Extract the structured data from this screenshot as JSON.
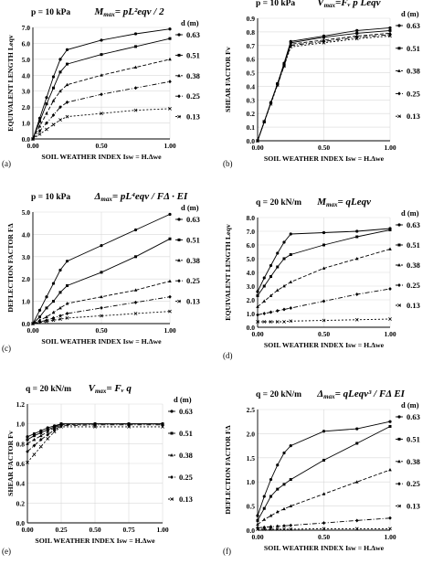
{
  "figure": {
    "panels": [
      {
        "letter": "(a)",
        "header_load": "p = 10 kPa",
        "eq_lhs": "M",
        "eq_sub": "max",
        "eq_rhs": "= pL²eqv / 2"
      },
      {
        "letter": "(b)",
        "header_load": "p = 10 kPa",
        "eq_lhs": "V",
        "eq_sub": "max",
        "eq_rhs": "=Fᵥ p Leqv"
      },
      {
        "letter": "(c)",
        "header_load": "p = 10 kPa",
        "eq_lhs": "Δ",
        "eq_sub": "max",
        "eq_rhs": "= pL⁴eqv / FΔ · EI"
      },
      {
        "letter": "(d)",
        "header_load": "q = 20 kN/m",
        "eq_lhs": "M",
        "eq_sub": "max",
        "eq_rhs": "= qLeqv"
      },
      {
        "letter": "(e)",
        "header_load": "q = 20 kN/m",
        "eq_lhs": "V",
        "eq_sub": "max",
        "eq_rhs": "= Fᵥ q"
      },
      {
        "letter": "(f)",
        "header_load": "q = 20 kN/m",
        "eq_lhs": "Δ",
        "eq_sub": "max",
        "eq_rhs": "= qLeqv³ / FΔ EI"
      }
    ]
  },
  "chart_data": [
    {
      "type": "line",
      "panel": "(a)",
      "ylabel": "EQUIVALENT LENGTH Leqv",
      "xlabel": "SOIL WEATHER INDEX Isw = H.Δwe",
      "xlim": [
        0,
        1
      ],
      "ylim": [
        0,
        7
      ],
      "x_ticks": [
        "0.00",
        "0.50",
        "1.00"
      ],
      "y_ticks": [
        "0.0",
        "1.0",
        "2.0",
        "3.0",
        "4.0",
        "5.0",
        "6.0",
        "7.0"
      ],
      "legend_title": "d (m)",
      "series": [
        {
          "name": "0.63",
          "x": [
            0,
            0.05,
            0.1,
            0.15,
            0.2,
            0.25,
            0.5,
            0.75,
            1.0
          ],
          "y": [
            0,
            1.3,
            2.6,
            3.9,
            5.0,
            5.6,
            6.2,
            6.6,
            6.9
          ]
        },
        {
          "name": "0.51",
          "x": [
            0,
            0.05,
            0.1,
            0.15,
            0.2,
            0.25,
            0.5,
            0.75,
            1.0
          ],
          "y": [
            0,
            1.1,
            2.2,
            3.2,
            4.2,
            4.7,
            5.3,
            5.8,
            6.3
          ]
        },
        {
          "name": "0.38",
          "x": [
            0,
            0.05,
            0.1,
            0.15,
            0.2,
            0.25,
            0.5,
            0.75,
            1.0
          ],
          "y": [
            0,
            0.8,
            1.6,
            2.4,
            3.0,
            3.4,
            4.0,
            4.5,
            5.0
          ]
        },
        {
          "name": "0.25",
          "x": [
            0,
            0.05,
            0.1,
            0.15,
            0.2,
            0.25,
            0.5,
            0.75,
            1.0
          ],
          "y": [
            0,
            0.5,
            1.0,
            1.5,
            2.0,
            2.3,
            2.8,
            3.2,
            3.6
          ]
        },
        {
          "name": "0.13",
          "x": [
            0,
            0.05,
            0.1,
            0.15,
            0.2,
            0.25,
            0.5,
            0.75,
            1.0
          ],
          "y": [
            0,
            0.3,
            0.6,
            0.9,
            1.2,
            1.4,
            1.6,
            1.8,
            1.9
          ]
        }
      ]
    },
    {
      "type": "line",
      "panel": "(b)",
      "ylabel": "SHEAR FACTOR Fv",
      "xlabel": "SOIL WEATHER INDEX Isw = H.Δwe",
      "xlim": [
        0,
        1
      ],
      "ylim": [
        0,
        0.9
      ],
      "x_ticks": [
        "0.00",
        "0.50",
        "1.00"
      ],
      "y_ticks": [
        "0.0",
        "0.1",
        "0.2",
        "0.3",
        "0.4",
        "0.5",
        "0.6",
        "0.7",
        "0.8",
        "0.9"
      ],
      "legend_title": "d (m)",
      "series": [
        {
          "name": "0.63",
          "x": [
            0,
            0.05,
            0.1,
            0.15,
            0.2,
            0.25,
            0.5,
            0.75,
            1.0
          ],
          "y": [
            0,
            0.14,
            0.28,
            0.42,
            0.57,
            0.73,
            0.77,
            0.81,
            0.83
          ]
        },
        {
          "name": "0.51",
          "x": [
            0,
            0.05,
            0.1,
            0.15,
            0.2,
            0.25,
            0.5,
            0.75,
            1.0
          ],
          "y": [
            0,
            0.14,
            0.28,
            0.42,
            0.56,
            0.72,
            0.76,
            0.79,
            0.81
          ]
        },
        {
          "name": "0.38",
          "x": [
            0,
            0.05,
            0.1,
            0.15,
            0.2,
            0.25,
            0.5,
            0.75,
            1.0
          ],
          "y": [
            0,
            0.14,
            0.28,
            0.42,
            0.56,
            0.71,
            0.74,
            0.77,
            0.79
          ]
        },
        {
          "name": "0.25",
          "x": [
            0,
            0.05,
            0.1,
            0.15,
            0.2,
            0.25,
            0.5,
            0.75,
            1.0
          ],
          "y": [
            0,
            0.14,
            0.28,
            0.41,
            0.55,
            0.7,
            0.73,
            0.76,
            0.78
          ]
        },
        {
          "name": "0.13",
          "x": [
            0,
            0.05,
            0.1,
            0.15,
            0.2,
            0.25,
            0.5,
            0.75,
            1.0
          ],
          "y": [
            0,
            0.14,
            0.27,
            0.41,
            0.55,
            0.69,
            0.72,
            0.75,
            0.77
          ]
        }
      ]
    },
    {
      "type": "line",
      "panel": "(c)",
      "ylabel": "DEFLECTION FACTOR FΔ",
      "xlabel": "SOIL WEATHER INDEX Isw = H.Δwe",
      "xlim": [
        0,
        1
      ],
      "ylim": [
        0,
        5
      ],
      "x_ticks": [
        "0.00",
        "0.50",
        "1.00"
      ],
      "y_ticks": [
        "0.0",
        "1.0",
        "2.0",
        "3.0",
        "4.0",
        "5.0"
      ],
      "legend_title": "d (m)",
      "series": [
        {
          "name": "0.63",
          "x": [
            0,
            0.05,
            0.1,
            0.15,
            0.2,
            0.25,
            0.5,
            0.75,
            1.0
          ],
          "y": [
            0,
            0.6,
            1.2,
            1.8,
            2.4,
            2.8,
            3.5,
            4.2,
            4.9
          ]
        },
        {
          "name": "0.51",
          "x": [
            0,
            0.05,
            0.1,
            0.15,
            0.2,
            0.25,
            0.5,
            0.75,
            1.0
          ],
          "y": [
            0,
            0.3,
            0.7,
            1.0,
            1.4,
            1.7,
            2.3,
            3.0,
            3.8
          ]
        },
        {
          "name": "0.38",
          "x": [
            0,
            0.05,
            0.1,
            0.15,
            0.2,
            0.25,
            0.5,
            0.75,
            1.0
          ],
          "y": [
            0,
            0.15,
            0.3,
            0.5,
            0.7,
            0.9,
            1.2,
            1.5,
            1.9
          ]
        },
        {
          "name": "0.25",
          "x": [
            0,
            0.05,
            0.1,
            0.15,
            0.2,
            0.25,
            0.5,
            0.75,
            1.0
          ],
          "y": [
            0,
            0.08,
            0.15,
            0.25,
            0.35,
            0.45,
            0.7,
            0.95,
            1.2
          ]
        },
        {
          "name": "0.13",
          "x": [
            0,
            0.05,
            0.1,
            0.15,
            0.2,
            0.25,
            0.5,
            0.75,
            1.0
          ],
          "y": [
            0,
            0.05,
            0.1,
            0.15,
            0.2,
            0.25,
            0.35,
            0.45,
            0.55
          ]
        }
      ]
    },
    {
      "type": "line",
      "panel": "(d)",
      "ylabel": "EQUIVALENT LENGTH Leqv",
      "xlabel": "SOIL WEATHER INDEX Isw = H.Δwe",
      "xlim": [
        0,
        1
      ],
      "ylim": [
        0,
        8
      ],
      "x_ticks": [
        "0.00",
        "0.50",
        "1.00"
      ],
      "y_ticks": [
        "0.0",
        "1.0",
        "2.0",
        "3.0",
        "4.0",
        "5.0",
        "6.0",
        "7.0",
        "8.0"
      ],
      "legend_title": "d (m)",
      "series": [
        {
          "name": "0.63",
          "x": [
            0,
            0.05,
            0.1,
            0.15,
            0.2,
            0.25,
            0.5,
            0.75,
            1.0
          ],
          "y": [
            2.6,
            3.6,
            4.5,
            5.4,
            6.2,
            6.8,
            6.9,
            7.0,
            7.2
          ]
        },
        {
          "name": "0.51",
          "x": [
            0,
            0.05,
            0.1,
            0.15,
            0.2,
            0.25,
            0.5,
            0.75,
            1.0
          ],
          "y": [
            2.3,
            3.0,
            3.7,
            4.4,
            5.0,
            5.3,
            6.0,
            6.6,
            7.1
          ]
        },
        {
          "name": "0.38",
          "x": [
            0,
            0.05,
            0.1,
            0.15,
            0.2,
            0.25,
            0.5,
            0.75,
            1.0
          ],
          "y": [
            1.5,
            1.9,
            2.3,
            2.7,
            3.0,
            3.3,
            4.3,
            5.0,
            5.7
          ]
        },
        {
          "name": "0.25",
          "x": [
            0,
            0.05,
            0.1,
            0.15,
            0.2,
            0.25,
            0.5,
            0.75,
            1.0
          ],
          "y": [
            0.9,
            1.0,
            1.1,
            1.2,
            1.3,
            1.4,
            1.9,
            2.4,
            2.8
          ]
        },
        {
          "name": "0.13",
          "x": [
            0,
            0.05,
            0.1,
            0.15,
            0.2,
            0.25,
            0.5,
            0.75,
            1.0
          ],
          "y": [
            0.4,
            0.4,
            0.4,
            0.4,
            0.4,
            0.45,
            0.5,
            0.55,
            0.6
          ]
        }
      ]
    },
    {
      "type": "line",
      "panel": "(e)",
      "ylabel": "SHEAR FACTOR Fv",
      "xlabel": "SOIL WEATHER INDEX Isw = H.Δwe",
      "xlim": [
        0,
        1
      ],
      "ylim": [
        0,
        1.2
      ],
      "x_ticks": [
        "0.00",
        "0.25",
        "0.50",
        "0.75",
        "1.00"
      ],
      "y_ticks": [
        "0.0",
        "0.2",
        "0.4",
        "0.6",
        "0.8",
        "1.0",
        "1.2"
      ],
      "legend_title": "d (m)",
      "series": [
        {
          "name": "0.63",
          "x": [
            0,
            0.05,
            0.1,
            0.15,
            0.2,
            0.25,
            0.5,
            0.75,
            1.0
          ],
          "y": [
            0.87,
            0.9,
            0.93,
            0.96,
            0.98,
            1.0,
            1.0,
            1.0,
            1.0
          ]
        },
        {
          "name": "0.51",
          "x": [
            0,
            0.05,
            0.1,
            0.15,
            0.2,
            0.25,
            0.5,
            0.75,
            1.0
          ],
          "y": [
            0.84,
            0.88,
            0.91,
            0.94,
            0.97,
            1.0,
            1.0,
            1.0,
            1.0
          ]
        },
        {
          "name": "0.38",
          "x": [
            0,
            0.05,
            0.1,
            0.15,
            0.2,
            0.25,
            0.5,
            0.75,
            1.0
          ],
          "y": [
            0.8,
            0.84,
            0.88,
            0.92,
            0.96,
            0.99,
            1.0,
            1.0,
            1.0
          ]
        },
        {
          "name": "0.25",
          "x": [
            0,
            0.05,
            0.1,
            0.15,
            0.2,
            0.25,
            0.5,
            0.75,
            1.0
          ],
          "y": [
            0.72,
            0.78,
            0.84,
            0.89,
            0.94,
            0.98,
            0.99,
            0.99,
            0.99
          ]
        },
        {
          "name": "0.13",
          "x": [
            0,
            0.05,
            0.1,
            0.15,
            0.2,
            0.25,
            0.5,
            0.75,
            1.0
          ],
          "y": [
            0.61,
            0.69,
            0.77,
            0.85,
            0.92,
            0.97,
            0.97,
            0.97,
            0.97
          ]
        }
      ]
    },
    {
      "type": "line",
      "panel": "(f)",
      "ylabel": "DEFLECTION FACTOR FΔ",
      "xlabel": "SOIL WEATHER INDEX Isw = H.Δwe",
      "xlim": [
        0,
        1
      ],
      "ylim": [
        0,
        2.5
      ],
      "x_ticks": [
        "0.00",
        "0.50",
        "1.00"
      ],
      "y_ticks": [
        "0.0",
        "0.5",
        "1.0",
        "1.5",
        "2.0",
        "2.5"
      ],
      "legend_title": "d (m)",
      "series": [
        {
          "name": "0.63",
          "x": [
            0,
            0.05,
            0.1,
            0.15,
            0.2,
            0.25,
            0.5,
            0.75,
            1.0
          ],
          "y": [
            0.3,
            0.7,
            1.05,
            1.35,
            1.6,
            1.75,
            2.05,
            2.1,
            2.25
          ]
        },
        {
          "name": "0.51",
          "x": [
            0,
            0.05,
            0.1,
            0.15,
            0.2,
            0.25,
            0.5,
            0.75,
            1.0
          ],
          "y": [
            0.2,
            0.45,
            0.7,
            0.85,
            0.95,
            1.05,
            1.45,
            1.8,
            2.15
          ]
        },
        {
          "name": "0.38",
          "x": [
            0,
            0.05,
            0.1,
            0.15,
            0.2,
            0.25,
            0.5,
            0.75,
            1.0
          ],
          "y": [
            0.12,
            0.22,
            0.3,
            0.38,
            0.44,
            0.5,
            0.75,
            1.0,
            1.25
          ]
        },
        {
          "name": "0.25",
          "x": [
            0,
            0.05,
            0.1,
            0.15,
            0.2,
            0.25,
            0.5,
            0.75,
            1.0
          ],
          "y": [
            0.05,
            0.06,
            0.07,
            0.08,
            0.09,
            0.1,
            0.15,
            0.2,
            0.25
          ]
        },
        {
          "name": "0.13",
          "x": [
            0,
            0.05,
            0.1,
            0.15,
            0.2,
            0.25,
            0.5,
            0.75,
            1.0
          ],
          "y": [
            0.02,
            0.02,
            0.02,
            0.02,
            0.02,
            0.02,
            0.03,
            0.03,
            0.03
          ]
        }
      ]
    }
  ]
}
